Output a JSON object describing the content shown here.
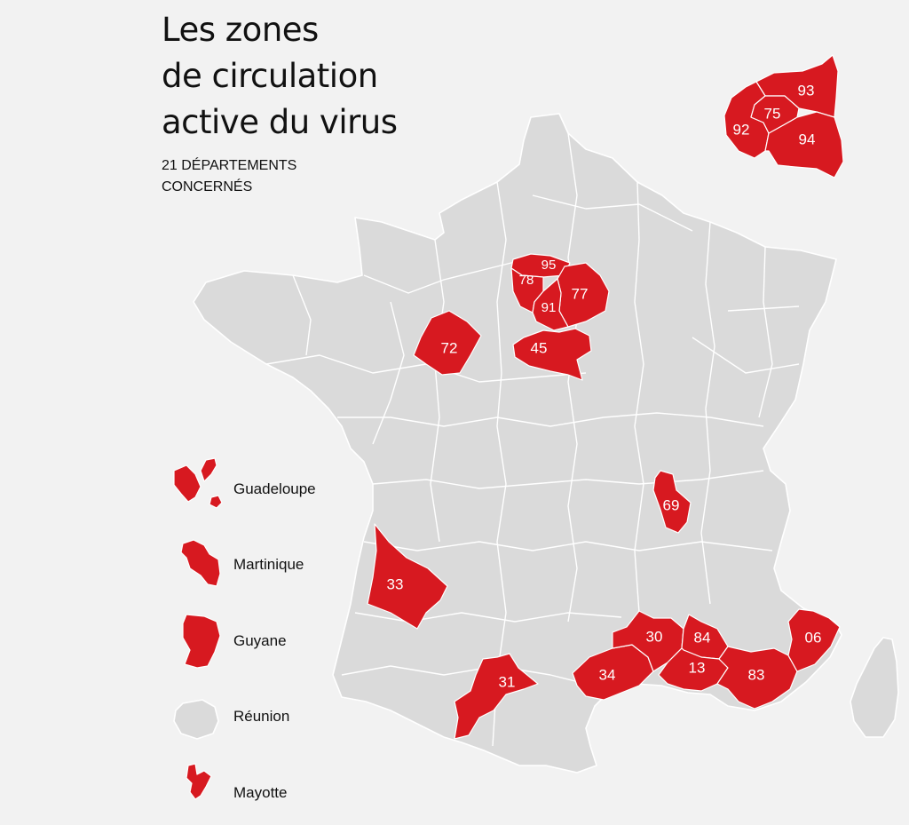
{
  "title_lines": [
    "Les zones",
    "de circulation",
    "active du virus"
  ],
  "subtitle_lines": [
    "21 DÉPARTEMENTS",
    "CONCERNÉS"
  ],
  "colors": {
    "affected": "#d71920",
    "not_affected": "#dadada",
    "background": "#f2f2f2",
    "border": "#ffffff"
  },
  "departments": [
    {
      "code": "95"
    },
    {
      "code": "78"
    },
    {
      "code": "77"
    },
    {
      "code": "91"
    },
    {
      "code": "72"
    },
    {
      "code": "45"
    },
    {
      "code": "69"
    },
    {
      "code": "33"
    },
    {
      "code": "31"
    },
    {
      "code": "34"
    },
    {
      "code": "30"
    },
    {
      "code": "84"
    },
    {
      "code": "13"
    },
    {
      "code": "83"
    },
    {
      "code": "06"
    }
  ],
  "inset_paris": {
    "departments": [
      {
        "code": "93"
      },
      {
        "code": "75"
      },
      {
        "code": "92"
      },
      {
        "code": "94"
      }
    ]
  },
  "legend": [
    {
      "label": "Guadeloupe",
      "affected": true,
      "icon": "guadeloupe-shape"
    },
    {
      "label": "Martinique",
      "affected": true,
      "icon": "martinique-shape"
    },
    {
      "label": "Guyane",
      "affected": true,
      "icon": "guyane-shape"
    },
    {
      "label": "Réunion",
      "affected": false,
      "icon": "reunion-shape"
    },
    {
      "label": "Mayotte",
      "affected": true,
      "icon": "mayotte-shape"
    }
  ]
}
